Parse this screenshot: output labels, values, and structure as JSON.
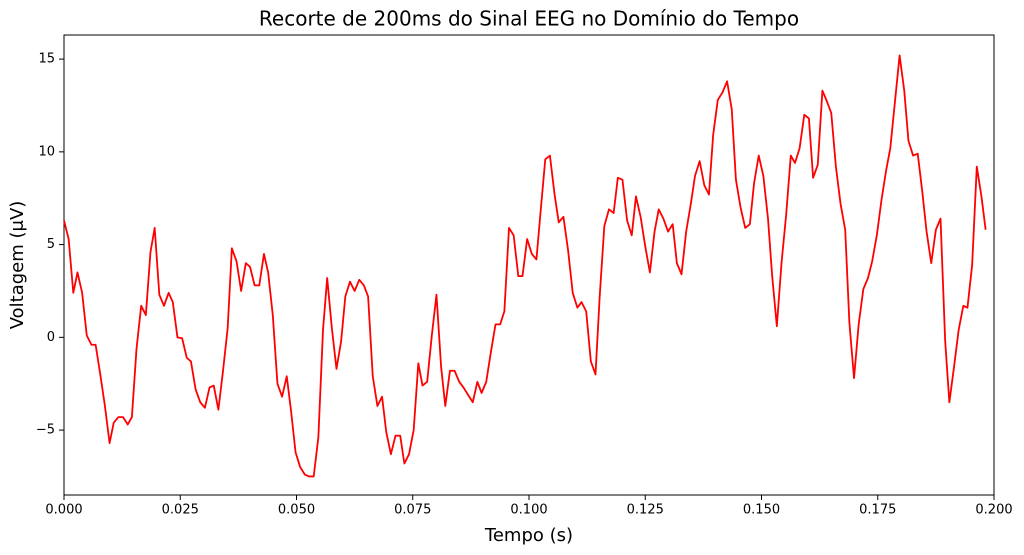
{
  "chart_data": {
    "type": "line",
    "title": "Recorte de 200ms do Sinal EEG no Domínio do Tempo",
    "x_label": "Tempo (s)",
    "y_label": "Voltagem (μV)",
    "xlim": [
      0,
      0.2
    ],
    "ylim": [
      -8.5,
      16.3
    ],
    "xticks": [
      {
        "value": 0,
        "label": "0.000"
      },
      {
        "value": 0.025,
        "label": "0.025"
      },
      {
        "value": 0.05,
        "label": "0.050"
      },
      {
        "value": 0.075,
        "label": "0.075"
      },
      {
        "value": 0.1,
        "label": "0.100"
      },
      {
        "value": 0.125,
        "label": "0.125"
      },
      {
        "value": 0.15,
        "label": "0.150"
      },
      {
        "value": 0.175,
        "label": "0.175"
      },
      {
        "value": 0.2,
        "label": "0.200"
      }
    ],
    "yticks": [
      {
        "value": -5,
        "label": "−5"
      },
      0,
      5,
      10,
      15
    ],
    "grid": false,
    "x": [
      0,
      0.001,
      0.002,
      0.0029,
      0.0039,
      0.0049,
      0.0059,
      0.0068,
      0.0078,
      0.0088,
      0.0098,
      0.0107,
      0.0117,
      0.0127,
      0.0137,
      0.0146,
      0.0156,
      0.0166,
      0.0176,
      0.0186,
      0.0195,
      0.0205,
      0.0215,
      0.0225,
      0.0234,
      0.0244,
      0.0254,
      0.0264,
      0.0273,
      0.0283,
      0.0293,
      0.0303,
      0.0313,
      0.0322,
      0.0332,
      0.0342,
      0.0352,
      0.0361,
      0.0371,
      0.0381,
      0.0391,
      0.04,
      0.041,
      0.042,
      0.043,
      0.0439,
      0.0449,
      0.0459,
      0.0469,
      0.0479,
      0.0488,
      0.0498,
      0.0508,
      0.0518,
      0.0527,
      0.0537,
      0.0547,
      0.0557,
      0.0566,
      0.0576,
      0.0586,
      0.0596,
      0.0605,
      0.0615,
      0.0625,
      0.0635,
      0.0645,
      0.0654,
      0.0664,
      0.0674,
      0.0684,
      0.0693,
      0.0703,
      0.0713,
      0.0723,
      0.0732,
      0.0742,
      0.0752,
      0.0762,
      0.0771,
      0.0781,
      0.0791,
      0.0801,
      0.0811,
      0.082,
      0.083,
      0.084,
      0.085,
      0.0859,
      0.0869,
      0.0879,
      0.0889,
      0.0898,
      0.0908,
      0.0918,
      0.0928,
      0.0938,
      0.0947,
      0.0957,
      0.0967,
      0.0977,
      0.0986,
      0.0996,
      0.1006,
      0.1016,
      0.1025,
      0.1035,
      0.1045,
      0.1055,
      0.1064,
      0.1074,
      0.1084,
      0.1094,
      0.1104,
      0.1113,
      0.1123,
      0.1133,
      0.1143,
      0.1152,
      0.1162,
      0.1172,
      0.1182,
      0.1191,
      0.1201,
      0.1211,
      0.1221,
      0.123,
      0.124,
      0.125,
      0.126,
      0.127,
      0.1279,
      0.1289,
      0.1299,
      0.1309,
      0.1318,
      0.1328,
      0.1338,
      0.1348,
      0.1357,
      0.1367,
      0.1377,
      0.1387,
      0.1396,
      0.1406,
      0.1416,
      0.1426,
      0.1436,
      0.1445,
      0.1455,
      0.1465,
      0.1475,
      0.1484,
      0.1494,
      0.1504,
      0.1514,
      0.1523,
      0.1533,
      0.1543,
      0.1553,
      0.1563,
      0.1572,
      0.1582,
      0.1592,
      0.1602,
      0.1611,
      0.1621,
      0.1631,
      0.1641,
      0.165,
      0.166,
      0.167,
      0.168,
      0.1689,
      0.1699,
      0.1709,
      0.1719,
      0.1729,
      0.1738,
      0.1748,
      0.1758,
      0.1768,
      0.1777,
      0.1787,
      0.1797,
      0.1807,
      0.1816,
      0.1826,
      0.1836,
      0.1846,
      0.1855,
      0.1865,
      0.1875,
      0.1885,
      0.1895,
      0.1904,
      0.1914,
      0.1924,
      0.1934,
      0.1943,
      0.1953,
      0.1963,
      0.1973,
      0.1982
    ],
    "series": [
      {
        "color": "#ff0000",
        "values": [
          6.3,
          5.3,
          2.4,
          3.5,
          2.4,
          0.1,
          -0.4,
          -0.4,
          -2.0,
          -3.7,
          -5.7,
          -4.6,
          -4.3,
          -4.3,
          -4.7,
          -4.3,
          -0.6,
          1.7,
          1.2,
          4.6,
          5.9,
          2.3,
          1.7,
          2.4,
          1.9,
          0,
          -0.05,
          -1.1,
          -1.3,
          -2.8,
          -3.5,
          -3.8,
          -2.7,
          -2.6,
          -3.9,
          -1.8,
          0.5,
          4.8,
          4.1,
          2.5,
          4.0,
          3.8,
          2.8,
          2.8,
          4.5,
          3.5,
          1.2,
          -2.5,
          -3.2,
          -2.1,
          -3.9,
          -6.2,
          -7.0,
          -7.4,
          -7.5,
          -7.5,
          -5.4,
          0.4,
          3.2,
          0.5,
          -1.7,
          -0.2,
          2.2,
          3.0,
          2.5,
          3.1,
          2.8,
          2.2,
          -2.1,
          -3.7,
          -3.2,
          -5.1,
          -6.3,
          -5.3,
          -5.3,
          -6.8,
          -6.3,
          -5.0,
          -1.4,
          -2.6,
          -2.4,
          0.1,
          2.3,
          -1.6,
          -3.7,
          -1.8,
          -1.8,
          -2.4,
          -2.7,
          -3.1,
          -3.5,
          -2.4,
          -3.0,
          -2.4,
          -0.8,
          0.7,
          0.7,
          1.4,
          5.9,
          5.5,
          3.3,
          3.3,
          5.3,
          4.5,
          4.2,
          6.8,
          9.6,
          9.8,
          7.7,
          6.2,
          6.5,
          4.7,
          2.4,
          1.6,
          1.9,
          1.4,
          -1.3,
          -2.0,
          2.2,
          6.0,
          6.9,
          6.7,
          8.6,
          8.5,
          6.3,
          5.5,
          7.6,
          6.5,
          4.9,
          3.5,
          5.7,
          6.9,
          6.4,
          5.7,
          6.1,
          4.0,
          3.4,
          5.7,
          7.2,
          8.7,
          9.5,
          8.2,
          7.7,
          10.9,
          12.8,
          13.2,
          13.8,
          12.3,
          8.5,
          7.0,
          5.9,
          6.1,
          8.3,
          9.8,
          8.7,
          6.4,
          3.3,
          0.6,
          4.0,
          6.6,
          9.8,
          9.4,
          10.2,
          12.0,
          11.8,
          8.6,
          9.3,
          13.3,
          12.7,
          12.1,
          9.2,
          7.2,
          5.8,
          0.8,
          -2.2,
          0.7,
          2.6,
          3.2,
          4.1,
          5.5,
          7.4,
          9.0,
          10.2,
          12.7,
          15.2,
          13.3,
          10.6,
          9.8,
          9.9,
          7.8,
          5.7,
          4.0,
          5.8,
          6.4,
          -0.2,
          -3.5,
          -1.6,
          0.4,
          1.7,
          1.6,
          3.9,
          9.2,
          7.6,
          5.8
        ]
      }
    ]
  }
}
